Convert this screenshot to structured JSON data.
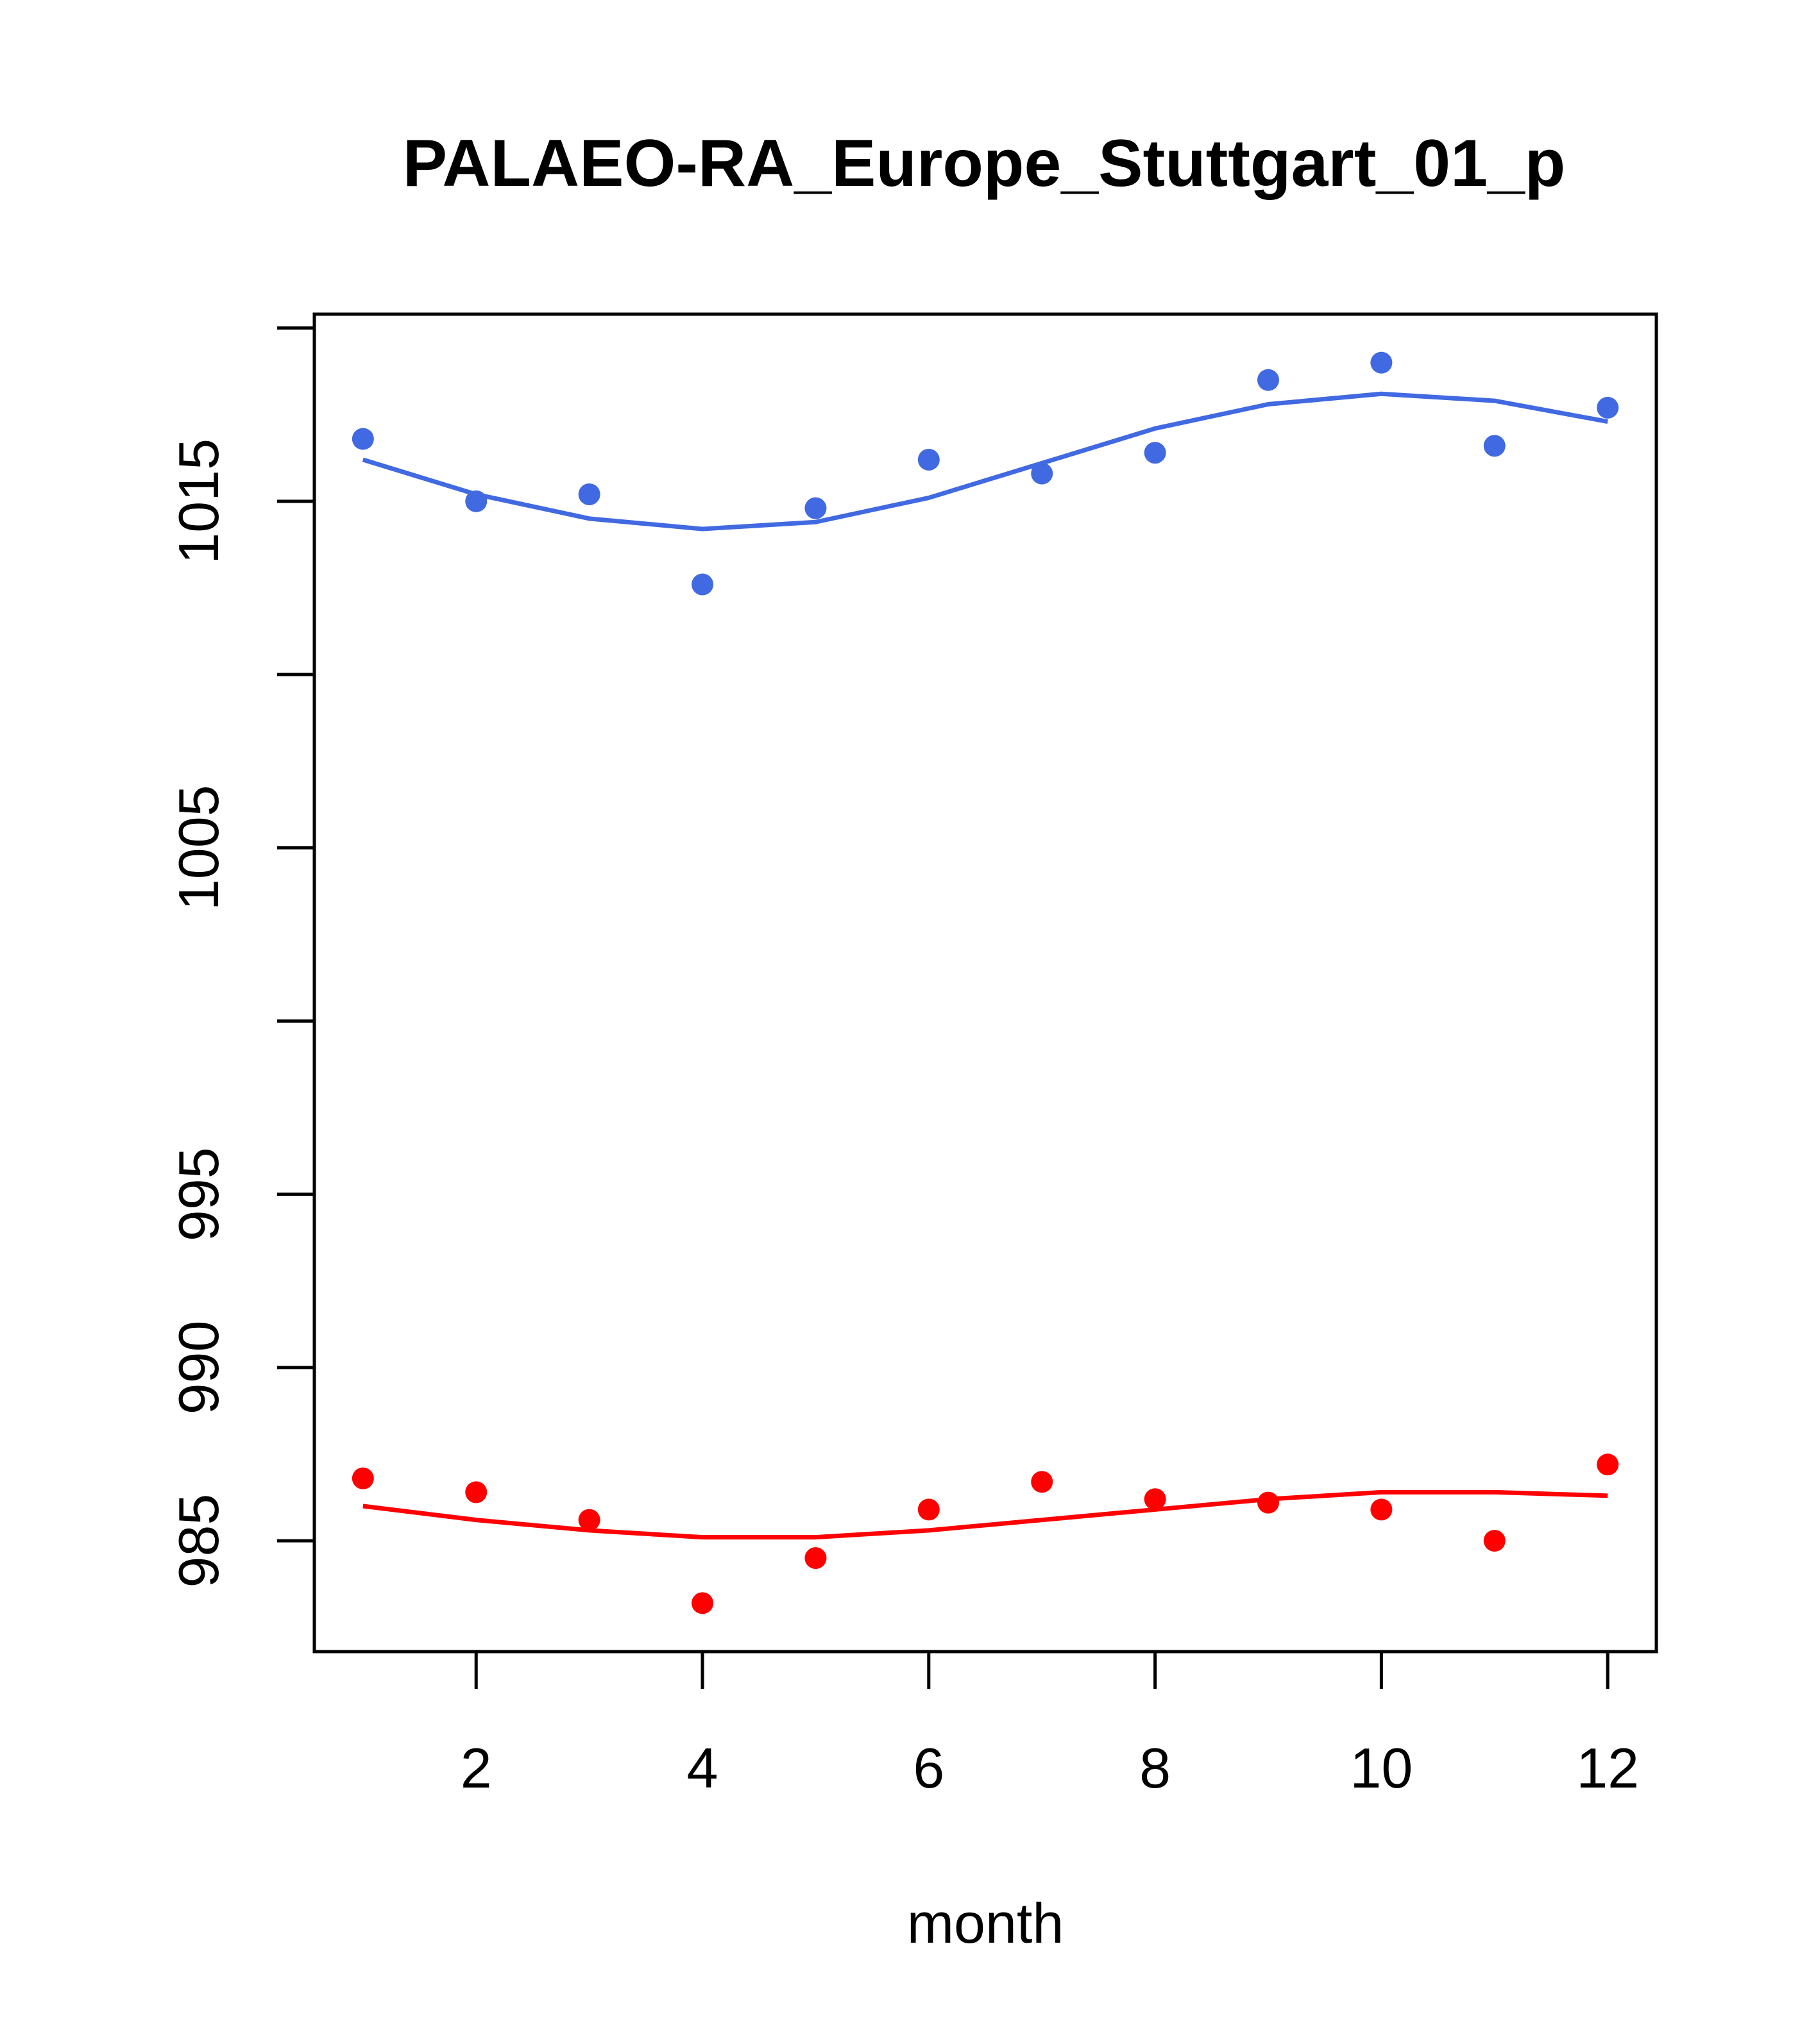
{
  "chart_data": {
    "type": "scatter",
    "title": "PALAEO-RA_Europe_Stuttgart_01_p",
    "xlabel": "month",
    "ylabel": "",
    "xlim": [
      0.57,
      12.43
    ],
    "ylim": [
      981.8,
      1020.4
    ],
    "x_ticks": [
      2,
      4,
      6,
      8,
      10,
      12
    ],
    "x_tick_labels": [
      "2",
      "4",
      "6",
      "8",
      "10",
      "12"
    ],
    "y_ticks": [
      985,
      990,
      995,
      1000,
      1005,
      1010,
      1015,
      1020
    ],
    "y_tick_labels": [
      "985",
      "990",
      "995",
      "",
      "1005",
      "",
      "1015",
      ""
    ],
    "grid": false,
    "series": [
      {
        "color": "#4169E1",
        "x": [
          1,
          2,
          3,
          4,
          5,
          6,
          7,
          8,
          9,
          10,
          11,
          12
        ],
        "points": [
          1016.8,
          1015.0,
          1015.2,
          1012.6,
          1014.8,
          1016.2,
          1015.8,
          1016.4,
          1018.5,
          1019.0,
          1016.6,
          1017.7
        ],
        "fit": [
          1016.2,
          1015.2,
          1014.5,
          1014.2,
          1014.4,
          1015.1,
          1016.1,
          1017.1,
          1017.8,
          1018.1,
          1017.9,
          1017.3
        ]
      },
      {
        "color": "#FF0000",
        "x": [
          1,
          2,
          3,
          4,
          5,
          6,
          7,
          8,
          9,
          10,
          11,
          12
        ],
        "points": [
          986.8,
          986.4,
          985.6,
          983.2,
          984.5,
          985.9,
          986.7,
          986.2,
          986.1,
          985.9,
          985.0,
          987.2
        ],
        "fit": [
          986.0,
          985.6,
          985.3,
          985.1,
          985.1,
          985.3,
          985.6,
          985.9,
          986.2,
          986.4,
          986.4,
          986.3
        ]
      }
    ]
  }
}
